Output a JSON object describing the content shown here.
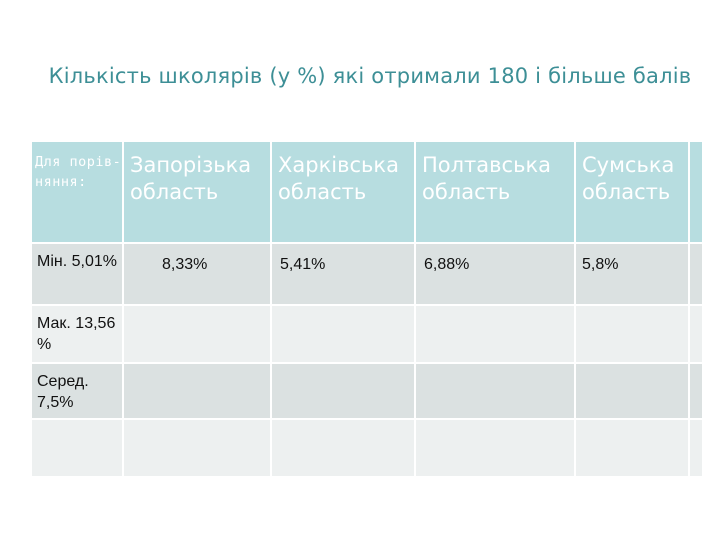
{
  "title": "Кількість школярів (у %) які отримали 180 і більше балів",
  "table": {
    "corner_label": "Для порів-няння:",
    "columns": [
      "Запорізька область",
      "Харківська область",
      "Полтавська область",
      "Сумська область"
    ],
    "rows": [
      {
        "label": "Мін. 5,01%",
        "values": [
          "8,33%",
          "5,41%",
          "6,88%",
          "5,8%"
        ]
      },
      {
        "label": "Мак. 13,56 %",
        "values": [
          "",
          "",
          "",
          ""
        ]
      },
      {
        "label": "Серед. 7,5%",
        "values": [
          "",
          "",
          "",
          ""
        ]
      },
      {
        "label": "",
        "values": [
          "",
          "",
          "",
          ""
        ]
      }
    ]
  }
}
